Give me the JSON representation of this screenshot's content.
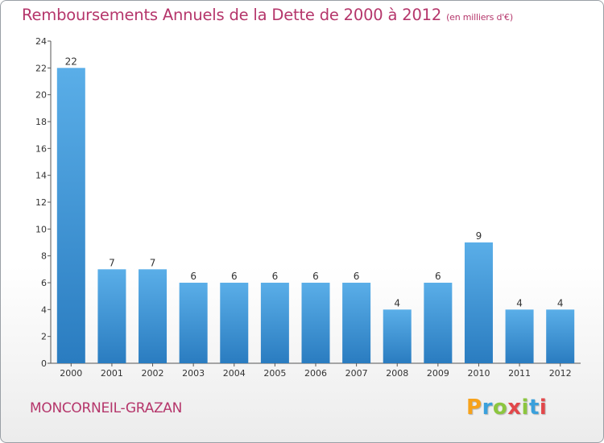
{
  "title": "Remboursements Annuels de la Dette de 2000 à 2012",
  "subtitle": "(en milliers d'€)",
  "footer": {
    "town": "MONCORNEIL-GRAZAN",
    "logo": "Proxiti"
  },
  "colors": {
    "title": "#b5366b",
    "bar_top": "#5aaee8",
    "bar_bottom": "#2a7cc0",
    "axis": "#555555"
  },
  "chart_data": {
    "type": "bar",
    "title": "Remboursements Annuels de la Dette de 2000 à 2012",
    "subtitle": "(en milliers d'€)",
    "categories": [
      "2000",
      "2001",
      "2002",
      "2003",
      "2004",
      "2005",
      "2006",
      "2007",
      "2008",
      "2009",
      "2010",
      "2011",
      "2012"
    ],
    "values": [
      22,
      7,
      7,
      6,
      6,
      6,
      6,
      6,
      4,
      6,
      9,
      4,
      4
    ],
    "value_labels": [
      "22",
      "7",
      "7",
      "6",
      "6",
      "6",
      "6",
      "6",
      "4",
      "6",
      "9",
      "4",
      "4"
    ],
    "yticks": [
      0,
      2,
      4,
      6,
      8,
      10,
      12,
      14,
      16,
      18,
      20,
      22,
      24
    ],
    "ylim": [
      0,
      24
    ],
    "grid": false,
    "legend": "none"
  }
}
